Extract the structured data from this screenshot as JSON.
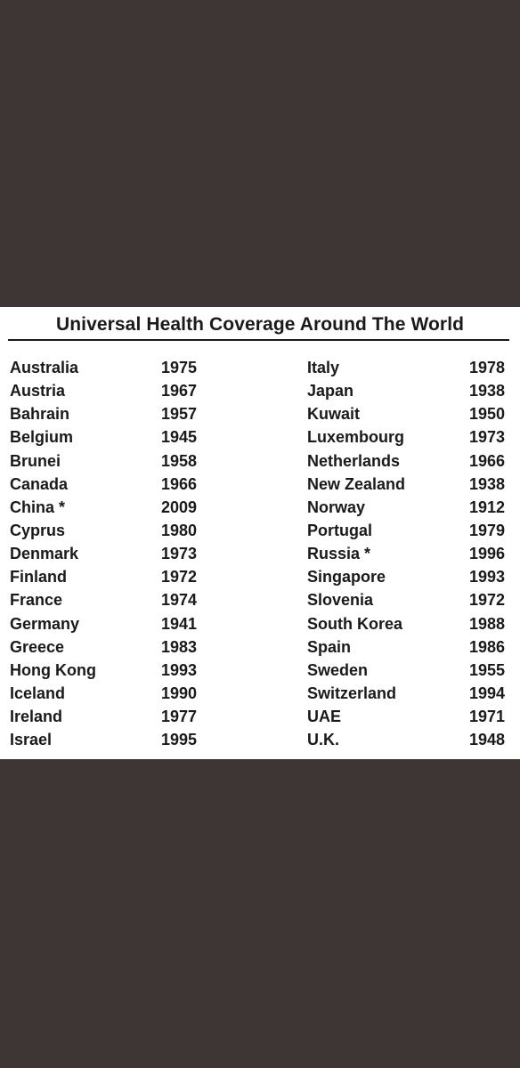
{
  "title": "Universal Health Coverage Around The World",
  "left_column": [
    {
      "country": "Australia",
      "year": "1975"
    },
    {
      "country": "Austria",
      "year": "1967"
    },
    {
      "country": "Bahrain",
      "year": "1957"
    },
    {
      "country": "Belgium",
      "year": "1945"
    },
    {
      "country": "Brunei",
      "year": "1958"
    },
    {
      "country": "Canada",
      "year": "1966"
    },
    {
      "country": "China *",
      "year": "2009"
    },
    {
      "country": "Cyprus",
      "year": "1980"
    },
    {
      "country": "Denmark",
      "year": "1973"
    },
    {
      "country": "Finland",
      "year": "1972"
    },
    {
      "country": "France",
      "year": "1974"
    },
    {
      "country": "Germany",
      "year": "1941"
    },
    {
      "country": "Greece",
      "year": "1983"
    },
    {
      "country": "Hong Kong",
      "year": "1993"
    },
    {
      "country": "Iceland",
      "year": "1990"
    },
    {
      "country": "Ireland",
      "year": "1977"
    },
    {
      "country": "Israel",
      "year": "1995"
    }
  ],
  "right_column": [
    {
      "country": "Italy",
      "year": "1978"
    },
    {
      "country": "Japan",
      "year": "1938"
    },
    {
      "country": "Kuwait",
      "year": "1950"
    },
    {
      "country": "Luxembourg",
      "year": "1973"
    },
    {
      "country": "Netherlands",
      "year": "1966"
    },
    {
      "country": "New Zealand",
      "year": "1938"
    },
    {
      "country": "Norway",
      "year": "1912"
    },
    {
      "country": "Portugal",
      "year": "1979"
    },
    {
      "country": "Russia *",
      "year": "1996"
    },
    {
      "country": "Singapore",
      "year": "1993"
    },
    {
      "country": "Slovenia",
      "year": "1972"
    },
    {
      "country": "South Korea",
      "year": "1988"
    },
    {
      "country": "Spain",
      "year": "1986"
    },
    {
      "country": "Sweden",
      "year": "1955"
    },
    {
      "country": "Switzerland",
      "year": "1994"
    },
    {
      "country": "UAE",
      "year": "1971"
    },
    {
      "country": "U.K.",
      "year": "1948"
    }
  ]
}
